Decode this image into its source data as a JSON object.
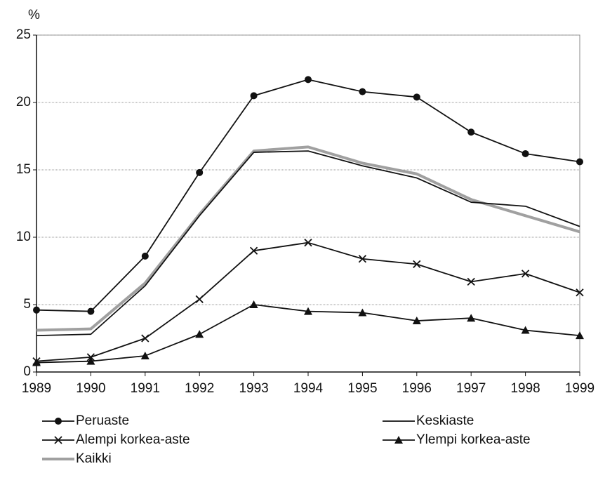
{
  "chart_data": {
    "type": "line",
    "y_unit": "%",
    "x": [
      1989,
      1990,
      1991,
      1992,
      1993,
      1994,
      1995,
      1996,
      1997,
      1998,
      1999
    ],
    "xlim": [
      1989,
      1999
    ],
    "xticks": [
      1989,
      1990,
      1991,
      1992,
      1993,
      1994,
      1995,
      1996,
      1997,
      1998,
      1999
    ],
    "ylim": [
      0,
      25
    ],
    "yticks": [
      0,
      5,
      10,
      15,
      20,
      25
    ],
    "grid": true,
    "series": [
      {
        "name": "Peruaste",
        "color": "#111111",
        "marker": "circle",
        "values": [
          4.6,
          4.5,
          8.6,
          14.8,
          20.5,
          21.7,
          20.8,
          20.4,
          17.8,
          16.2,
          15.6
        ]
      },
      {
        "name": "Keskiaste",
        "color": "#111111",
        "marker": "none",
        "values": [
          2.7,
          2.8,
          6.4,
          11.6,
          16.3,
          16.4,
          15.3,
          14.4,
          12.6,
          12.3,
          10.8
        ]
      },
      {
        "name": "Alempi korkea-aste",
        "color": "#111111",
        "marker": "x",
        "values": [
          0.8,
          1.1,
          2.5,
          5.4,
          9.0,
          9.6,
          8.4,
          8.0,
          6.7,
          7.3,
          5.9
        ]
      },
      {
        "name": "Ylempi korkea-aste",
        "color": "#111111",
        "marker": "triangle",
        "values": [
          0.7,
          0.8,
          1.2,
          2.8,
          5.0,
          4.5,
          4.4,
          3.8,
          4.0,
          3.1,
          2.7
        ]
      },
      {
        "name": "Kaikki",
        "color": "#a0a0a0",
        "marker": "none",
        "values": [
          3.1,
          3.2,
          6.6,
          11.7,
          16.4,
          16.7,
          15.5,
          14.7,
          12.8,
          11.6,
          10.4
        ]
      }
    ]
  }
}
